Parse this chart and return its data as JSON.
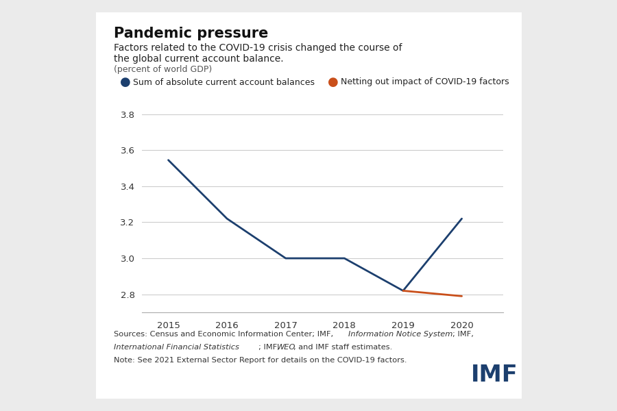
{
  "title": "Pandemic pressure",
  "subtitle_line1": "Factors related to the COVID-19 crisis changed the course of",
  "subtitle_line2": "the global current account balance.",
  "subtitle3": "(percent of world GDP)",
  "years": [
    2015,
    2016,
    2017,
    2018,
    2019,
    2020
  ],
  "blue_series": [
    3.545,
    3.22,
    3.0,
    3.0,
    2.82,
    3.22
  ],
  "orange_years": [
    2019,
    2020
  ],
  "orange_series": [
    2.82,
    2.79
  ],
  "blue_color": "#1c3f6e",
  "orange_color": "#c94f1a",
  "legend_blue": "Sum of absolute current account balances",
  "legend_orange": "Netting out impact of COVID-19 factors",
  "ylim": [
    2.7,
    3.92
  ],
  "yticks": [
    2.8,
    3.0,
    3.2,
    3.4,
    3.6,
    3.8
  ],
  "xticks": [
    2015,
    2016,
    2017,
    2018,
    2019,
    2020
  ],
  "background_color": "#ebebeb",
  "chart_bg": "#ffffff",
  "grid_color": "#cccccc",
  "text_color": "#222222",
  "source_color": "#333333",
  "imf_color": "#1c3f6e",
  "line_width": 2.0
}
